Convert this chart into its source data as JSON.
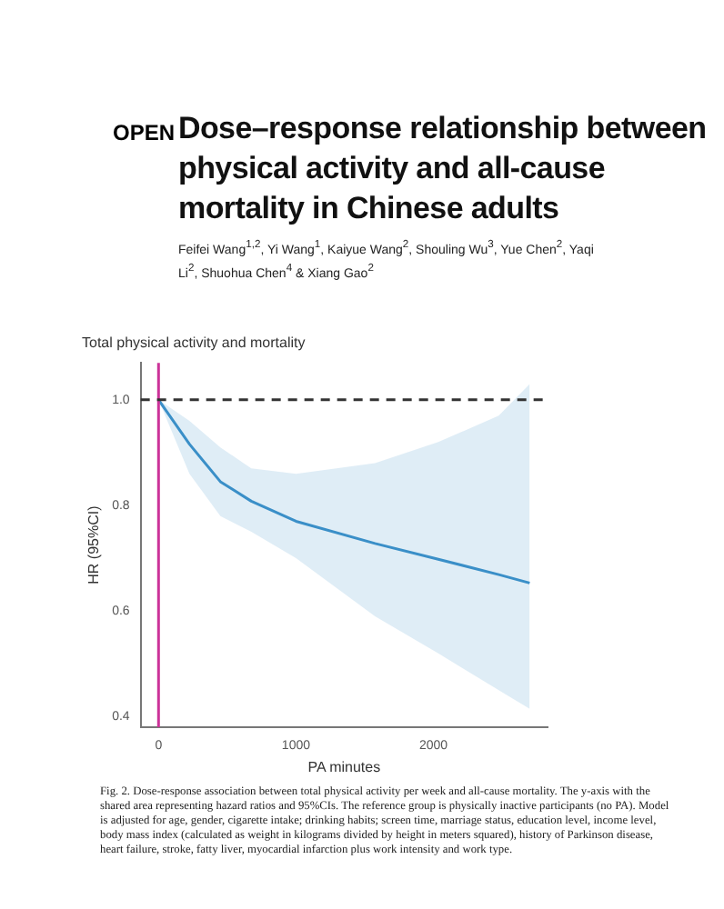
{
  "chart_data": {
    "type": "line",
    "title": "Total physical activity and mortality",
    "xlabel": "PA minutes",
    "ylabel": "HR (95%CI)",
    "x": [
      0,
      225,
      450,
      675,
      1000,
      1575,
      2035,
      2475,
      2700
    ],
    "series": [
      {
        "color": "#3a8fc8",
        "values": [
          1.0,
          0.916,
          0.845,
          0.808,
          0.77,
          0.728,
          0.698,
          0.669,
          0.653
        ],
        "lower": [
          1.0,
          0.86,
          0.78,
          0.75,
          0.7,
          0.59,
          0.52,
          0.45,
          0.415
        ],
        "upper": [
          1.0,
          0.96,
          0.91,
          0.87,
          0.86,
          0.88,
          0.92,
          0.97,
          1.03
        ]
      }
    ],
    "xlim": [
      -130,
      2830
    ],
    "ylim": [
      0.38,
      1.07
    ],
    "xticks": [
      0,
      1000,
      2000
    ],
    "yticks": [
      0.4,
      0.6,
      0.8,
      {
        "value": 1,
        "label": "1.0"
      }
    ],
    "grid": false,
    "legend": false,
    "ref_lines": [
      {
        "axis": "x",
        "value": 0,
        "color": "#cc3399",
        "line_style": "solid"
      },
      {
        "axis": "y",
        "value": 1,
        "color": "#333333",
        "line_style": "dashed"
      }
    ],
    "annotations": [
      "OPEN",
      "Dose–response relationship between physical activity and all-cause mortality in Chinese adults",
      "Feifei Wang$^{1,2}$, Yi Wang$^{1}$, Kaiyue Wang$^{2}$, Shouling Wu$^{3}$, Yue Chen$^{2}$, Yaqi Li$^{2}$, Shuohua Chen$^{4}$ & Xiang Gao$^{2}$",
      "Fig. 2. Dose-response association between total physical activity per week and all-cause mortality. The y-axis with the shared area representing hazard ratios and 95%CIs. The reference group is physically inactive participants (no PA). Model is adjusted for age, gender, cigarette intake; drinking habits; screen time, marriage status, education level, income level, body mass index (calculated as weight in kilograms divided by height in meters squared), history of Parkinson disease, heart failure, stroke, fatty liver, myocardial infarction plus work intensity and work type."
    ]
  }
}
